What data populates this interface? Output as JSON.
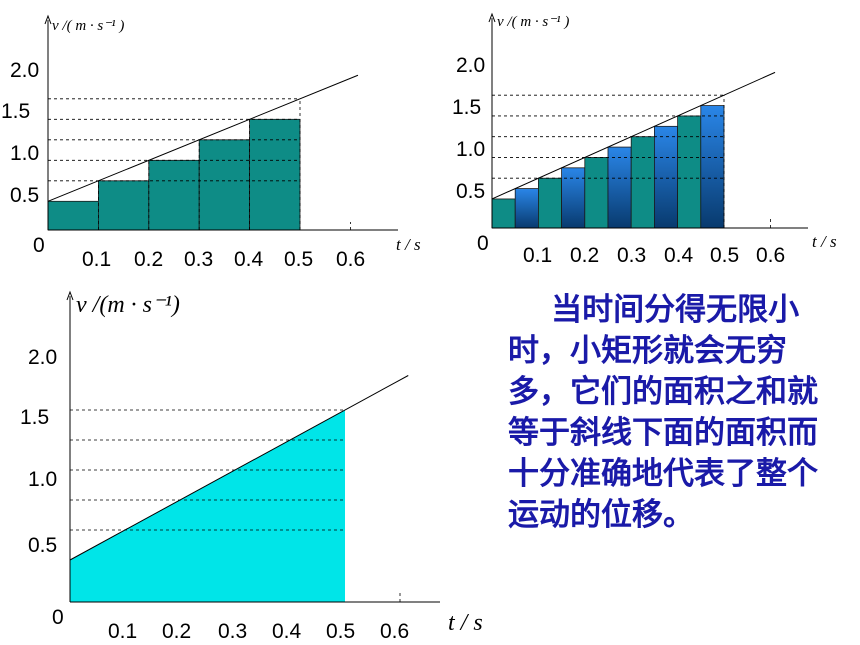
{
  "colors": {
    "teal": "#0e8c86",
    "blue_top": "#2a86e8",
    "blue_bottom": "#083a6e",
    "cyan": "#00e5e8",
    "note": "#1a1aa8"
  },
  "panels": [
    {
      "id": "coarse",
      "v_label": "v /( m · s⁻¹ )",
      "t_label": "t / s",
      "origin": "0",
      "y_ticks": [
        "2.0",
        "1.5",
        "1.0",
        "0.5"
      ],
      "x_ticks": [
        "0.1",
        "0.2",
        "0.3",
        "0.4",
        "0.5",
        "0.6"
      ],
      "line": {
        "v0": 0.35,
        "slope": 2.5
      },
      "rect_width": 0.1,
      "rect_heights": [
        0.35,
        0.6,
        0.85,
        1.1,
        1.35
      ]
    },
    {
      "id": "fine",
      "v_label": "v /( m · s⁻¹ )",
      "t_label": "t / s",
      "origin": "0",
      "y_ticks": [
        "2.0",
        "1.5",
        "1.0",
        "0.5"
      ],
      "x_ticks": [
        "0.1",
        "0.2",
        "0.3",
        "0.4",
        "0.5",
        "0.6"
      ],
      "line": {
        "v0": 0.35,
        "slope": 2.5
      },
      "rect_width": 0.05,
      "rect_heights": [
        0.35,
        0.475,
        0.6,
        0.725,
        0.85,
        0.975,
        1.1,
        1.225,
        1.35,
        1.475
      ]
    },
    {
      "id": "limit",
      "v_label": "v /(m · s⁻¹)",
      "t_label": "t / s",
      "origin": "0",
      "y_ticks": [
        "2.0",
        "1.5",
        "1.0",
        "0.5"
      ],
      "x_ticks": [
        "0.1",
        "0.2",
        "0.3",
        "0.4",
        "0.5",
        "0.6"
      ],
      "line": {
        "v0": 0.35,
        "slope": 2.5
      },
      "area_end_t": 0.5
    }
  ],
  "note_text": "    当时间分得无限小时，小矩形就会无穷多，它们的面积之和就等于斜线下面的面积而十分准确地代表了整个运动的位移。"
}
